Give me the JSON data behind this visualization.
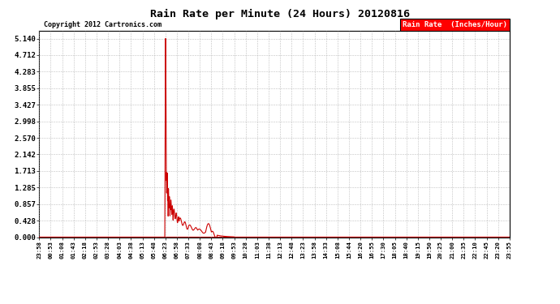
{
  "title": "Rain Rate per Minute (24 Hours) 20120816",
  "copyright": "Copyright 2012 Cartronics.com",
  "legend_label": "Rain Rate  (Inches/Hour)",
  "legend_bg": "#ff0000",
  "legend_fg": "#ffffff",
  "line_color": "#cc0000",
  "background_color": "#ffffff",
  "grid_color": "#b0b0b0",
  "yticks": [
    0.0,
    0.428,
    0.857,
    1.285,
    1.713,
    2.142,
    2.57,
    2.998,
    3.427,
    3.855,
    4.283,
    4.712,
    5.14
  ],
  "ylim": [
    0.0,
    5.35
  ],
  "x_labels": [
    "23:58",
    "00:53",
    "01:08",
    "01:43",
    "02:18",
    "02:53",
    "03:28",
    "04:03",
    "04:38",
    "05:13",
    "05:48",
    "06:23",
    "06:58",
    "07:33",
    "08:08",
    "08:43",
    "09:18",
    "09:53",
    "10:28",
    "11:03",
    "11:38",
    "12:13",
    "12:48",
    "13:23",
    "13:58",
    "14:33",
    "15:08",
    "15:44",
    "16:20",
    "16:55",
    "17:30",
    "18:05",
    "18:40",
    "19:15",
    "19:50",
    "20:25",
    "21:00",
    "21:35",
    "22:10",
    "22:45",
    "23:20",
    "23:55"
  ]
}
